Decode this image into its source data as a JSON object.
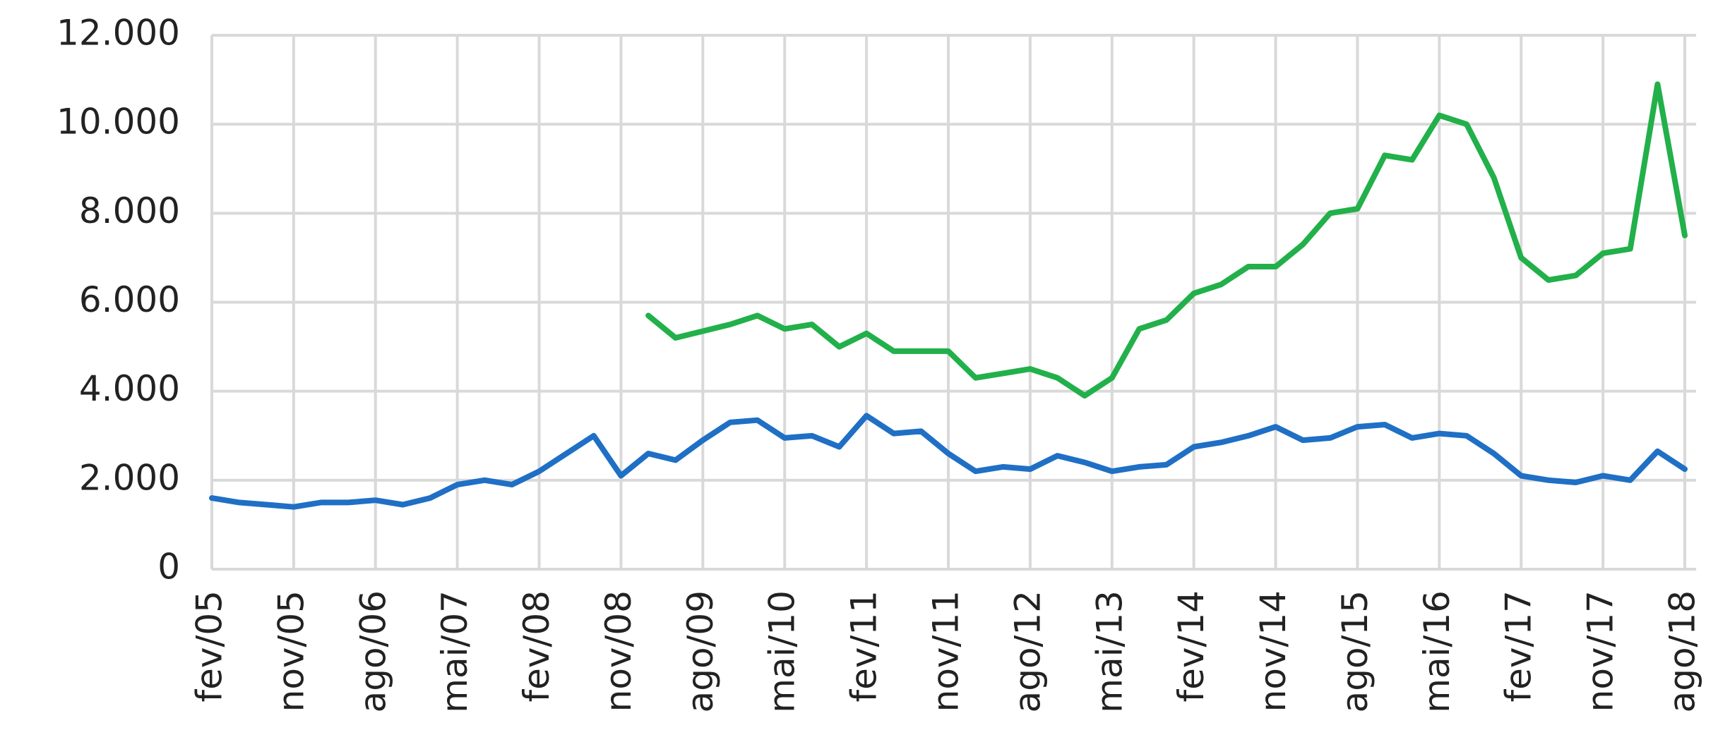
{
  "chart_data": {
    "type": "line",
    "categories": [
      "fev/05",
      null,
      null,
      "nov/05",
      null,
      null,
      "ago/06",
      null,
      null,
      "mai/07",
      null,
      null,
      "fev/08",
      null,
      null,
      "nov/08",
      null,
      null,
      "ago/09",
      null,
      null,
      "mai/10",
      null,
      null,
      "fev/11",
      null,
      null,
      "nov/11",
      null,
      null,
      "ago/12",
      null,
      null,
      "mai/13",
      null,
      null,
      "fev/14",
      null,
      null,
      "nov/14",
      null,
      null,
      "ago/15",
      null,
      null,
      "mai/16",
      null,
      null,
      "fev/17",
      null,
      null,
      "nov/17",
      null,
      null,
      "ago/18"
    ],
    "series": [
      {
        "color": "#1f6fc5",
        "values": [
          1600,
          1500,
          1450,
          1400,
          1500,
          1500,
          1550,
          1450,
          1600,
          1900,
          2000,
          1900,
          2200,
          2600,
          3000,
          2100,
          2600,
          2450,
          2900,
          3300,
          3350,
          2950,
          3000,
          2750,
          3450,
          3050,
          3100,
          2600,
          2200,
          2300,
          2250,
          2550,
          2400,
          2200,
          2300,
          2350,
          2750,
          2850,
          3000,
          3200,
          2900,
          2950,
          3200,
          3250,
          2950,
          3050,
          3000,
          2600,
          2100,
          2000,
          1950,
          2100,
          2000,
          2650,
          2250
        ]
      },
      {
        "color": "#22b04a",
        "values": [
          null,
          null,
          null,
          null,
          null,
          null,
          null,
          null,
          null,
          null,
          null,
          null,
          null,
          null,
          null,
          null,
          5700,
          5200,
          5350,
          5500,
          5700,
          5400,
          5500,
          5000,
          5300,
          4900,
          4900,
          4900,
          4300,
          4400,
          4500,
          4300,
          3900,
          4300,
          5400,
          5600,
          6200,
          6400,
          6800,
          6800,
          7300,
          8000,
          8100,
          9300,
          9200,
          10200,
          10000,
          8800,
          7000,
          6500,
          6600,
          7100,
          7200,
          10900,
          7500
        ]
      }
    ],
    "ylim": [
      0,
      12000
    ],
    "yticks": [
      0,
      {
        "value": 2000,
        "label": "2.000"
      },
      {
        "value": 4000,
        "label": "4.000"
      },
      {
        "value": 6000,
        "label": "6.000"
      },
      {
        "value": 8000,
        "label": "8.000"
      },
      {
        "value": 10000,
        "label": "10.000"
      },
      {
        "value": 12000,
        "label": "12.000"
      }
    ],
    "grid": true
  }
}
